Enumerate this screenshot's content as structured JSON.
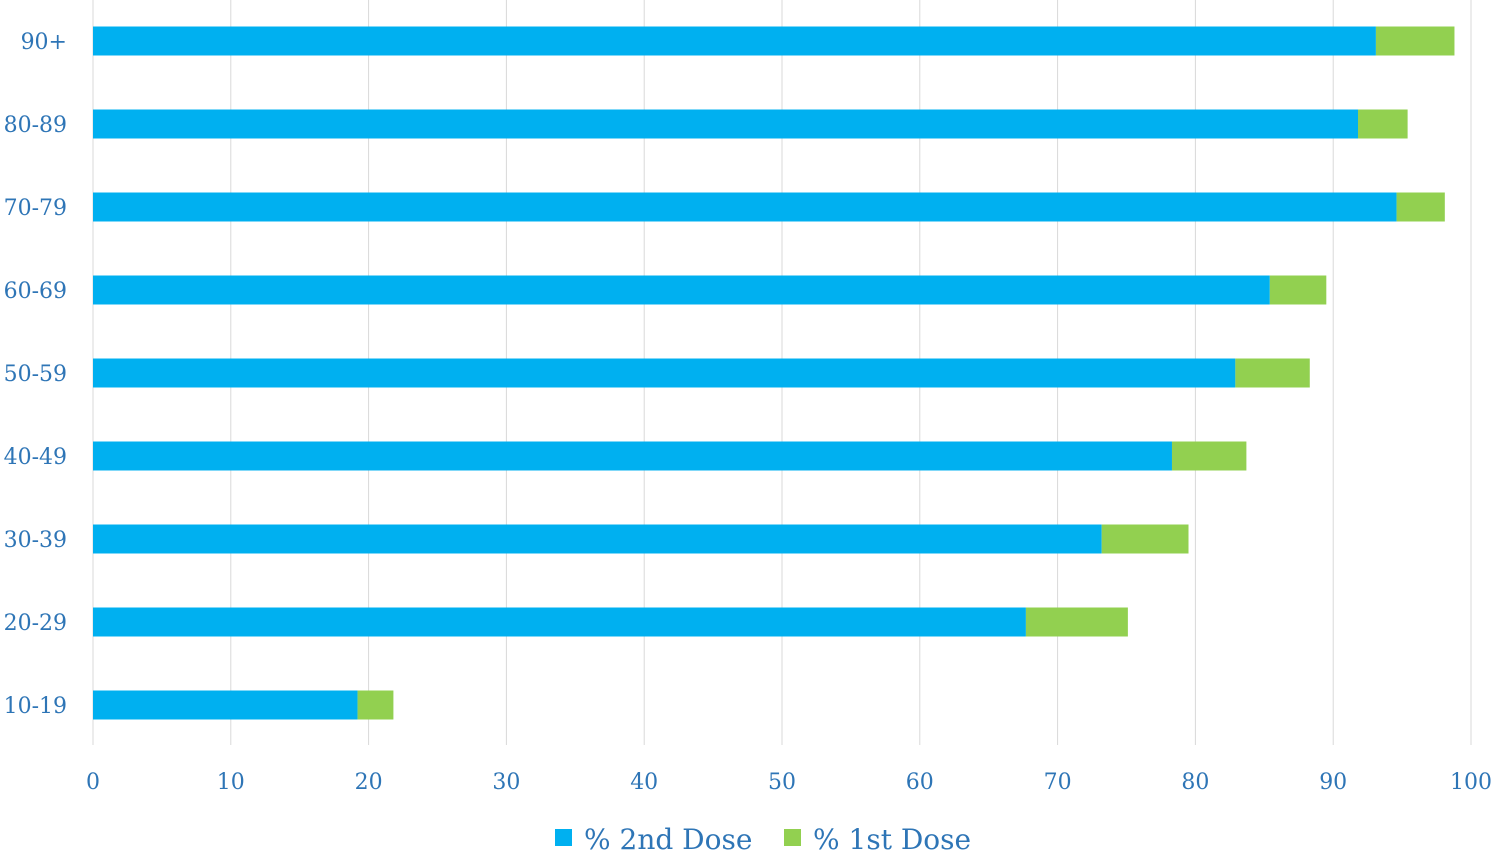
{
  "chart_data": {
    "type": "bar",
    "orientation": "horizontal",
    "stacked": true,
    "categories": [
      "90+",
      "80-89",
      "70-79",
      "60-69",
      "50-59",
      "40-49",
      "30-39",
      "20-29",
      "10-19"
    ],
    "series": [
      {
        "name": "% 2nd Dose",
        "color": "#00B0F0",
        "values": [
          93.1,
          91.8,
          94.6,
          85.4,
          82.9,
          78.3,
          73.2,
          67.7,
          19.2
        ]
      },
      {
        "name": "% 1st Dose",
        "color": "#92D050",
        "values": [
          5.7,
          3.6,
          3.5,
          4.1,
          5.4,
          5.4,
          6.3,
          7.4,
          2.6
        ]
      }
    ],
    "xlim": [
      0,
      100
    ],
    "xticks": [
      "0",
      "10",
      "20",
      "30",
      "40",
      "50",
      "60",
      "70",
      "80",
      "90",
      "100"
    ],
    "grid": true,
    "legend_position": "bottom",
    "title": "",
    "xlabel": "",
    "ylabel": "",
    "tick_label_color": "#2E75B6",
    "grid_color": "#D9D9D9"
  }
}
